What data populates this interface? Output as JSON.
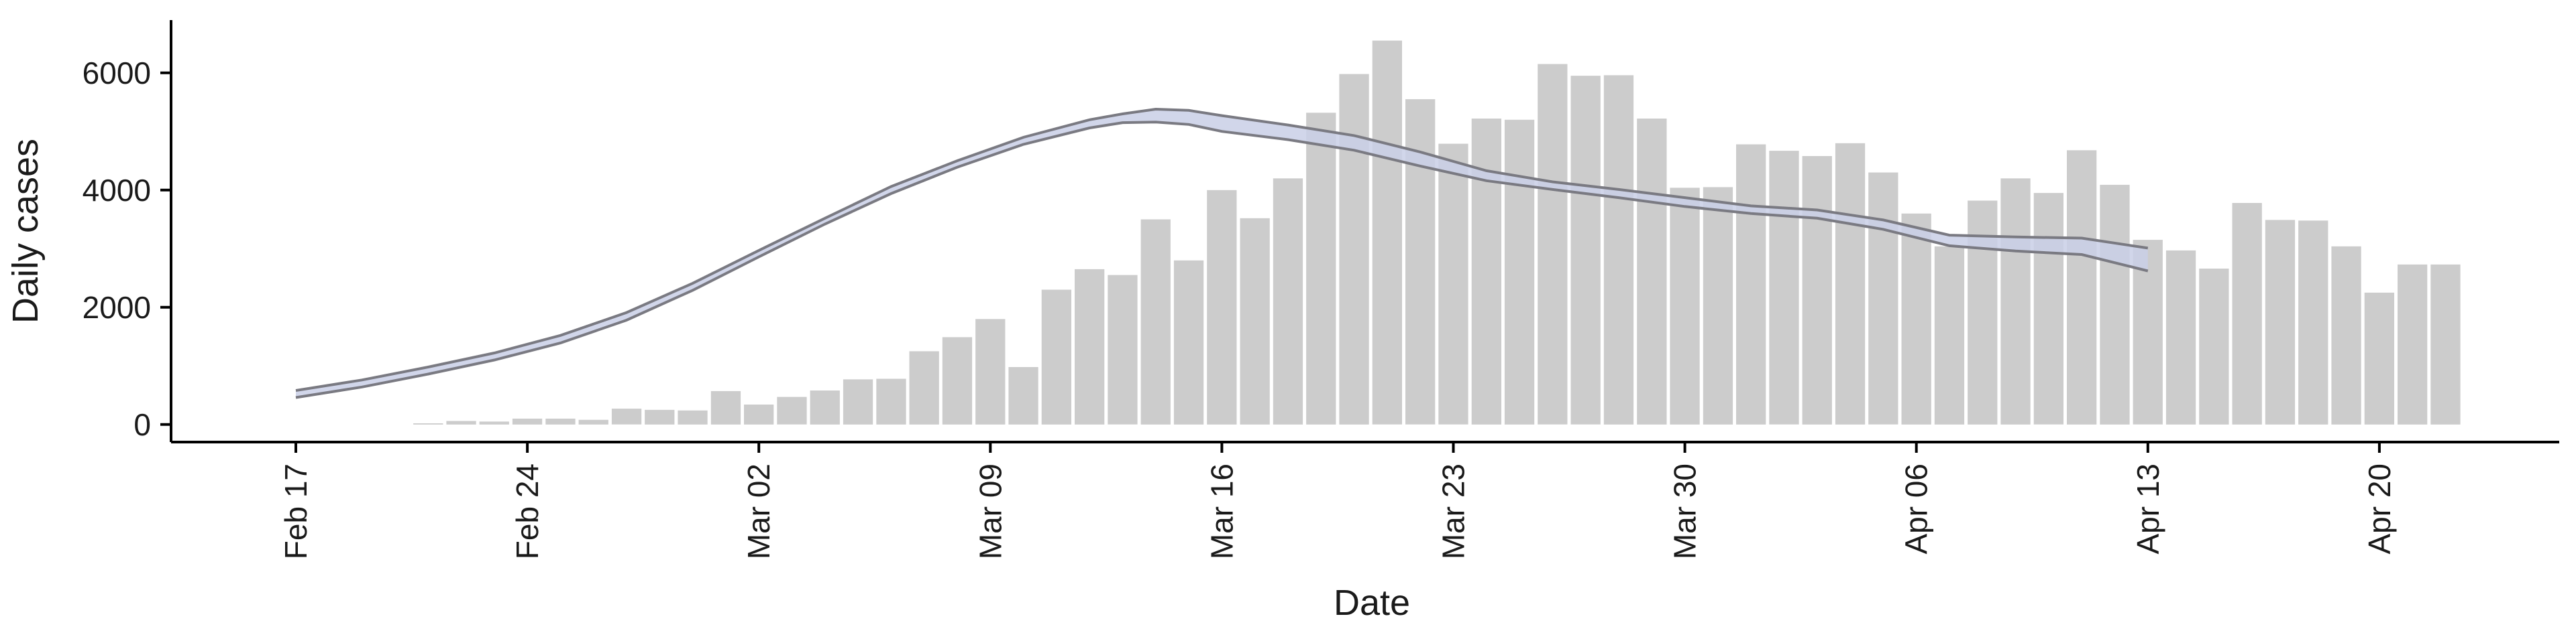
{
  "chart_data": {
    "type": "bar",
    "xlabel": "Date",
    "ylabel": "Daily cases",
    "ylim": [
      -300,
      6900
    ],
    "yticks": [
      0,
      2000,
      4000,
      6000
    ],
    "xticks": [
      {
        "date": "2020-02-17",
        "label": "Feb 17"
      },
      {
        "date": "2020-02-24",
        "label": "Feb 24"
      },
      {
        "date": "2020-03-02",
        "label": "Mar 02"
      },
      {
        "date": "2020-03-09",
        "label": "Mar 09"
      },
      {
        "date": "2020-03-16",
        "label": "Mar 16"
      },
      {
        "date": "2020-03-23",
        "label": "Mar 23"
      },
      {
        "date": "2020-03-30",
        "label": "Mar 30"
      },
      {
        "date": "2020-04-06",
        "label": "Apr 06"
      },
      {
        "date": "2020-04-13",
        "label": "Apr 13"
      },
      {
        "date": "2020-04-20",
        "label": "Apr 20"
      }
    ],
    "xlim": [
      "2020-02-17",
      "2020-04-23"
    ],
    "grid": false,
    "legend": "none",
    "bars": {
      "dates": [
        "2020-02-21",
        "2020-02-22",
        "2020-02-23",
        "2020-02-24",
        "2020-02-25",
        "2020-02-26",
        "2020-02-27",
        "2020-02-28",
        "2020-02-29",
        "2020-03-01",
        "2020-03-02",
        "2020-03-03",
        "2020-03-04",
        "2020-03-05",
        "2020-03-06",
        "2020-03-07",
        "2020-03-08",
        "2020-03-09",
        "2020-03-10",
        "2020-03-11",
        "2020-03-12",
        "2020-03-13",
        "2020-03-14",
        "2020-03-15",
        "2020-03-16",
        "2020-03-17",
        "2020-03-18",
        "2020-03-19",
        "2020-03-20",
        "2020-03-21",
        "2020-03-22",
        "2020-03-23",
        "2020-03-24",
        "2020-03-25",
        "2020-03-26",
        "2020-03-27",
        "2020-03-28",
        "2020-03-29",
        "2020-03-30",
        "2020-03-31",
        "2020-04-01",
        "2020-04-02",
        "2020-04-03",
        "2020-04-04",
        "2020-04-05",
        "2020-04-06",
        "2020-04-07",
        "2020-04-08",
        "2020-04-09",
        "2020-04-10",
        "2020-04-11",
        "2020-04-12",
        "2020-04-13",
        "2020-04-14",
        "2020-04-15",
        "2020-04-16",
        "2020-04-17",
        "2020-04-18",
        "2020-04-19",
        "2020-04-20",
        "2020-04-21",
        "2020-04-22"
      ],
      "values": [
        20,
        60,
        50,
        100,
        100,
        80,
        270,
        250,
        240,
        570,
        340,
        470,
        580,
        770,
        780,
        1250,
        1490,
        1800,
        980,
        2300,
        2650,
        2550,
        3500,
        2800,
        4000,
        3520,
        4200,
        5320,
        5980,
        6550,
        5550,
        4790,
        5220,
        5200,
        6150,
        5950,
        5960,
        5220,
        4040,
        4050,
        4780,
        4670,
        4580,
        4800,
        4300,
        3600,
        3040,
        3820,
        4200,
        3950,
        4680,
        4090,
        3150,
        2970,
        2660,
        3780,
        3490,
        3480,
        3040,
        2250,
        2730,
        2730
      ],
      "color": "#cccccc"
    },
    "series": [
      {
        "band": true,
        "x": [
          "2020-02-17",
          "2020-02-19",
          "2020-02-21",
          "2020-02-23",
          "2020-02-25",
          "2020-02-27",
          "2020-02-29",
          "2020-03-02",
          "2020-03-04",
          "2020-03-06",
          "2020-03-08",
          "2020-03-10",
          "2020-03-12",
          "2020-03-13",
          "2020-03-14",
          "2020-03-15",
          "2020-03-16",
          "2020-03-18",
          "2020-03-20",
          "2020-03-22",
          "2020-03-24",
          "2020-03-26",
          "2020-03-28",
          "2020-03-30",
          "2020-04-01",
          "2020-04-03",
          "2020-04-05",
          "2020-04-07",
          "2020-04-09",
          "2020-04-11",
          "2020-04-13"
        ],
        "lower": [
          460,
          640,
          860,
          1100,
          1390,
          1780,
          2290,
          2860,
          3420,
          3940,
          4390,
          4780,
          5060,
          5150,
          5160,
          5120,
          5000,
          4860,
          4680,
          4410,
          4160,
          4010,
          3870,
          3720,
          3600,
          3520,
          3330,
          3050,
          2960,
          2900,
          2620
        ],
        "upper": [
          580,
          760,
          980,
          1220,
          1520,
          1910,
          2410,
          2970,
          3520,
          4060,
          4500,
          4900,
          5200,
          5300,
          5380,
          5360,
          5270,
          5110,
          4930,
          4650,
          4330,
          4140,
          4010,
          3870,
          3730,
          3660,
          3490,
          3230,
          3200,
          3180,
          3010
        ],
        "fill": "#c9cfe6",
        "stroke": "#7a7a82"
      }
    ]
  }
}
